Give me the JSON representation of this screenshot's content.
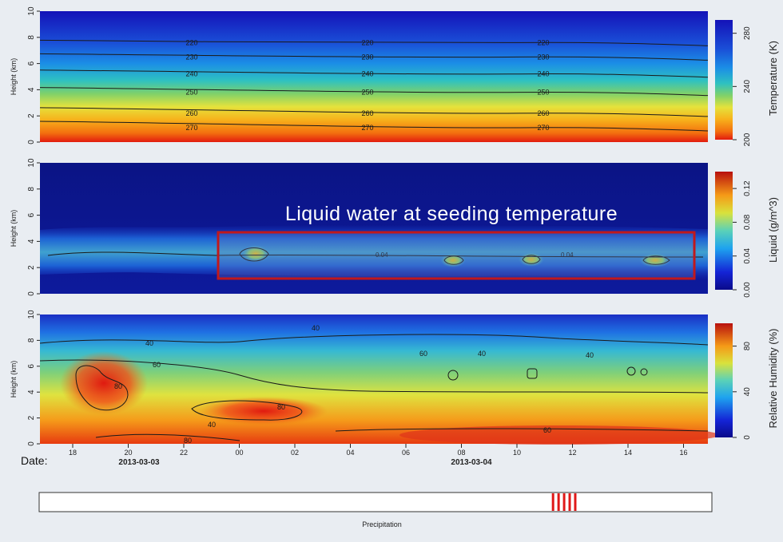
{
  "colors": {
    "background": "#e9edf2",
    "highlight_box": "#c0181c",
    "precip_marks": "#e01818",
    "contour": "#1a1a1a"
  },
  "annotation": "Liquid water at seeding temperature",
  "date_label": "Date:",
  "chart_data": [
    {
      "type": "heatmap",
      "panel": "temperature",
      "ylabel": "Height (km)",
      "ylim": [
        0,
        10
      ],
      "yticks": [
        "0",
        "2",
        "4",
        "6",
        "8",
        "10"
      ],
      "colorbar_label": "Temperature (K)",
      "colorbar_range": [
        200,
        290
      ],
      "colorbar_ticks": [
        "200",
        "240",
        "280"
      ],
      "contours": [
        {
          "label": "220",
          "height_km": 7.6
        },
        {
          "label": "230",
          "height_km": 6.5
        },
        {
          "label": "240",
          "height_km": 5.2
        },
        {
          "label": "250",
          "height_km": 3.8
        },
        {
          "label": "260",
          "height_km": 2.2
        },
        {
          "label": "270",
          "height_km": 1.1
        }
      ]
    },
    {
      "type": "heatmap",
      "panel": "liquid",
      "ylabel": "Height (km)",
      "ylim": [
        0,
        10
      ],
      "yticks": [
        "0",
        "2",
        "4",
        "6",
        "8",
        "10"
      ],
      "colorbar_label": "Liquid (g/m^3)",
      "colorbar_range": [
        0,
        0.14
      ],
      "colorbar_ticks": [
        "0.00",
        "0.04",
        "0.08",
        "0.12"
      ],
      "contour_labels": [
        "0.04",
        "0.04"
      ],
      "layer_base_km": 1.8,
      "layer_top_km": 3.6
    },
    {
      "type": "heatmap",
      "panel": "relative-humidity",
      "ylabel": "Height (km)",
      "ylim": [
        0,
        10
      ],
      "yticks": [
        "0",
        "2",
        "4",
        "6",
        "8",
        "10"
      ],
      "colorbar_label": "Relative Humidity (%)",
      "colorbar_range": [
        0,
        100
      ],
      "colorbar_ticks": [
        "0",
        "40",
        "80"
      ],
      "contour_labels": [
        "40",
        "60",
        "80",
        "40",
        "40",
        "60",
        "80",
        "40",
        "40",
        "60",
        "80"
      ]
    }
  ],
  "time_axis": {
    "ticks": [
      "18",
      "20",
      "22",
      "00",
      "02",
      "04",
      "06",
      "08",
      "10",
      "12",
      "14",
      "16"
    ],
    "dates": [
      "2013-03-03",
      "2013-03-04"
    ]
  },
  "precipitation": {
    "label": "Precipitation",
    "event_hours": [
      11.3,
      11.5,
      11.7,
      11.9,
      12.1
    ]
  }
}
